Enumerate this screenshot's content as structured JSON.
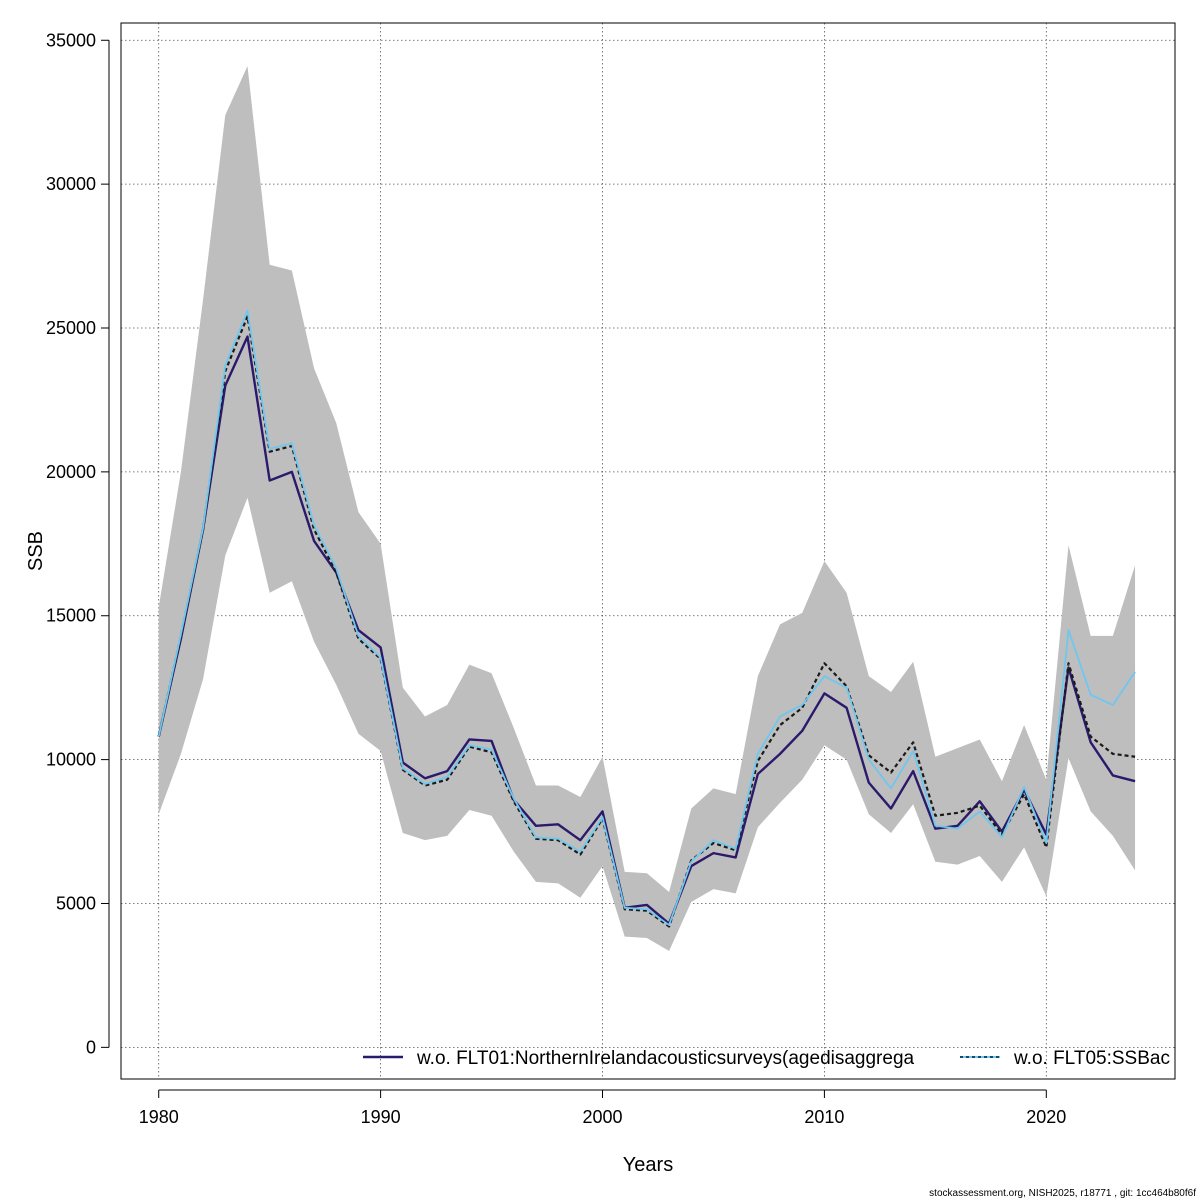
{
  "chart_data": {
    "type": "line",
    "xlabel": "Years",
    "ylabel": "SSB",
    "xlim": [
      1978.3,
      2025.8
    ],
    "ylim": [
      -1100,
      35600
    ],
    "x_ticks": [
      1980,
      1990,
      2000,
      2010,
      2020
    ],
    "y_ticks": [
      0,
      5000,
      10000,
      15000,
      20000,
      25000,
      30000,
      35000
    ],
    "grid": true,
    "legend_position": "bottom",
    "x": [
      1980,
      1981,
      1982,
      1983,
      1984,
      1985,
      1986,
      1987,
      1988,
      1989,
      1990,
      1991,
      1992,
      1993,
      1994,
      1995,
      1996,
      1997,
      1998,
      1999,
      2000,
      2001,
      2002,
      2003,
      2004,
      2005,
      2006,
      2007,
      2008,
      2009,
      2010,
      2011,
      2012,
      2013,
      2014,
      2015,
      2016,
      2017,
      2018,
      2019,
      2020,
      2021,
      2022,
      2023,
      2024
    ],
    "band": {
      "color": "#bebebe",
      "lower": [
        8100,
        10200,
        12800,
        17100,
        19100,
        15800,
        16200,
        14100,
        12600,
        10900,
        10300,
        7450,
        7200,
        7350,
        8250,
        8050,
        6800,
        5750,
        5700,
        5200,
        6300,
        3850,
        3800,
        3350,
        5050,
        5500,
        5350,
        7650,
        8500,
        9300,
        10500,
        10000,
        8100,
        7450,
        8450,
        6450,
        6350,
        6650,
        5750,
        6950,
        5250,
        10050,
        8200,
        7350,
        6150
      ],
      "upper": [
        15300,
        20000,
        26000,
        32400,
        34100,
        27200,
        27000,
        23600,
        21700,
        18600,
        17500,
        12500,
        11500,
        11900,
        13300,
        13000,
        11100,
        9100,
        9100,
        8700,
        10100,
        6100,
        6050,
        5400,
        8300,
        9000,
        8800,
        12900,
        14700,
        15100,
        16900,
        15800,
        12900,
        12350,
        13400,
        10100,
        10400,
        10700,
        9250,
        11200,
        9300,
        17450,
        14300,
        14300,
        16750
      ]
    },
    "series": [
      {
        "name": "w.o. FLT01:NorthernIrelandacousticsurveys(agedisaggrega",
        "color": "#2b1a6b",
        "dash": "solid",
        "width": 2.4,
        "values": [
          10800,
          14200,
          18000,
          23000,
          24700,
          19700,
          20000,
          17600,
          16500,
          14500,
          13900,
          9900,
          9350,
          9600,
          10700,
          10650,
          8600,
          7700,
          7750,
          7200,
          8200,
          4850,
          4950,
          4300,
          6300,
          6750,
          6600,
          9500,
          10200,
          11000,
          12300,
          11800,
          9200,
          8300,
          9600,
          7600,
          7700,
          8550,
          7500,
          8950,
          7400,
          13200,
          10600,
          9450,
          9250
        ]
      },
      {
        "name": "",
        "color": "#1a1a1a",
        "dash": "dashed",
        "width": 2.2,
        "values": [
          10800,
          14300,
          18000,
          23500,
          25400,
          20700,
          20900,
          18000,
          16500,
          14200,
          13500,
          9650,
          9100,
          9300,
          10450,
          10250,
          8550,
          7250,
          7200,
          6700,
          7950,
          4800,
          4750,
          4200,
          6500,
          7100,
          6850,
          9950,
          11200,
          11800,
          13350,
          12550,
          10150,
          9550,
          10600,
          8050,
          8150,
          8400,
          7400,
          8800,
          6950,
          13350,
          10800,
          10200,
          10100
        ]
      },
      {
        "name": "w.o. FLT05:SSBac",
        "color": "#6ec7ef",
        "dash": "solid",
        "width": 1.8,
        "values": [
          10800,
          14350,
          18050,
          23700,
          25600,
          20800,
          21000,
          18150,
          16650,
          14300,
          13550,
          9700,
          9150,
          9400,
          10500,
          10350,
          8650,
          7300,
          7250,
          6800,
          8000,
          4850,
          4800,
          4250,
          6450,
          7200,
          6900,
          10200,
          11500,
          11900,
          12900,
          12500,
          10000,
          9000,
          10300,
          7700,
          7600,
          8200,
          7300,
          9050,
          7100,
          14500,
          12250,
          11900,
          13050
        ]
      }
    ]
  },
  "legend": {
    "item1_label": "w.o. FLT01:NorthernIrelandacousticsurveys(agedisaggrega",
    "item2_label": "w.o. FLT05:SSBac"
  },
  "footer_text": "stockassessment.org, NISH2025, r18771 , git: 1cc464b80f6f"
}
